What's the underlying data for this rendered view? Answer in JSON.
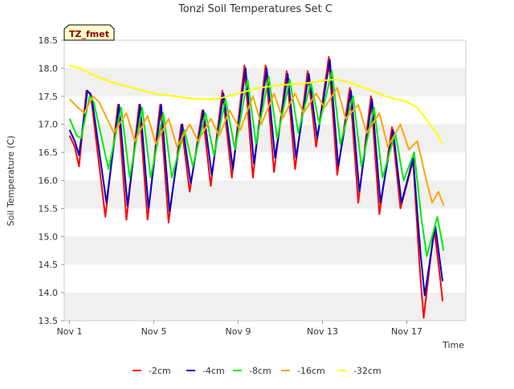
{
  "chart_data": {
    "type": "line",
    "title": "Tonzi Soil Temperatures Set C",
    "site_label": "TZ_fmet",
    "xlabel": "Time",
    "ylabel": "Soil Temperature (C)",
    "xlim": [
      -0.25,
      18.8
    ],
    "ylim": [
      13.5,
      18.5
    ],
    "x_ticks": [
      {
        "value": 0,
        "label": "Nov 1"
      },
      {
        "value": 4,
        "label": "Nov 5"
      },
      {
        "value": 8,
        "label": "Nov 9"
      },
      {
        "value": 12,
        "label": "Nov 13"
      },
      {
        "value": 16,
        "label": "Nov 17"
      }
    ],
    "y_ticks": [
      13.5,
      14.0,
      14.5,
      15.0,
      15.5,
      16.0,
      16.5,
      17.0,
      17.5,
      18.0,
      18.5
    ],
    "grid": "horizontal bands",
    "legend_position": "bottom",
    "series": [
      {
        "name": "-2cm",
        "color": "#ff0000",
        "points": [
          [
            0.0,
            16.8
          ],
          [
            0.25,
            16.6
          ],
          [
            0.45,
            16.25
          ],
          [
            0.8,
            17.6
          ],
          [
            1.0,
            17.55
          ],
          [
            1.7,
            15.35
          ],
          [
            2.3,
            17.35
          ],
          [
            2.7,
            15.3
          ],
          [
            3.3,
            17.35
          ],
          [
            3.7,
            15.3
          ],
          [
            4.3,
            17.35
          ],
          [
            4.7,
            15.25
          ],
          [
            5.3,
            17.0
          ],
          [
            5.7,
            15.8
          ],
          [
            6.3,
            17.25
          ],
          [
            6.7,
            15.9
          ],
          [
            7.25,
            17.6
          ],
          [
            7.7,
            16.05
          ],
          [
            8.3,
            18.05
          ],
          [
            8.7,
            16.05
          ],
          [
            9.3,
            18.05
          ],
          [
            9.7,
            16.15
          ],
          [
            10.3,
            17.95
          ],
          [
            10.7,
            16.2
          ],
          [
            11.3,
            17.95
          ],
          [
            11.7,
            16.6
          ],
          [
            12.3,
            18.2
          ],
          [
            12.7,
            16.1
          ],
          [
            13.3,
            17.65
          ],
          [
            13.7,
            15.6
          ],
          [
            14.3,
            17.5
          ],
          [
            14.7,
            15.4
          ],
          [
            15.3,
            16.95
          ],
          [
            15.7,
            15.5
          ],
          [
            16.3,
            16.35
          ],
          [
            16.6,
            14.5
          ],
          [
            16.8,
            13.55
          ],
          [
            17.3,
            15.15
          ],
          [
            17.6,
            14.2
          ],
          [
            17.7,
            13.85
          ]
        ]
      },
      {
        "name": "-4cm",
        "color": "#0000cc",
        "points": [
          [
            0.0,
            16.9
          ],
          [
            0.25,
            16.7
          ],
          [
            0.45,
            16.45
          ],
          [
            0.85,
            17.6
          ],
          [
            1.05,
            17.5
          ],
          [
            1.75,
            15.6
          ],
          [
            2.35,
            17.35
          ],
          [
            2.75,
            15.55
          ],
          [
            3.35,
            17.35
          ],
          [
            3.75,
            15.5
          ],
          [
            4.35,
            17.35
          ],
          [
            4.75,
            15.45
          ],
          [
            5.35,
            17.0
          ],
          [
            5.75,
            15.95
          ],
          [
            6.35,
            17.25
          ],
          [
            6.75,
            16.1
          ],
          [
            7.3,
            17.55
          ],
          [
            7.75,
            16.2
          ],
          [
            8.35,
            18.0
          ],
          [
            8.75,
            16.3
          ],
          [
            9.35,
            18.0
          ],
          [
            9.75,
            16.4
          ],
          [
            10.35,
            17.9
          ],
          [
            10.75,
            16.4
          ],
          [
            11.35,
            17.9
          ],
          [
            11.75,
            16.75
          ],
          [
            12.35,
            18.15
          ],
          [
            12.75,
            16.25
          ],
          [
            13.35,
            17.6
          ],
          [
            13.75,
            15.8
          ],
          [
            14.35,
            17.45
          ],
          [
            14.75,
            15.6
          ],
          [
            15.35,
            16.9
          ],
          [
            15.75,
            15.6
          ],
          [
            16.3,
            16.4
          ],
          [
            16.65,
            14.7
          ],
          [
            16.85,
            13.95
          ],
          [
            17.35,
            15.2
          ],
          [
            17.7,
            14.2
          ]
        ]
      },
      {
        "name": "-8cm",
        "color": "#00ee00",
        "points": [
          [
            0.0,
            17.1
          ],
          [
            0.35,
            16.8
          ],
          [
            0.55,
            16.75
          ],
          [
            0.95,
            17.5
          ],
          [
            1.15,
            17.4
          ],
          [
            1.85,
            16.2
          ],
          [
            2.45,
            17.3
          ],
          [
            2.85,
            16.05
          ],
          [
            3.45,
            17.3
          ],
          [
            3.85,
            16.05
          ],
          [
            4.45,
            17.2
          ],
          [
            4.85,
            16.05
          ],
          [
            5.45,
            16.9
          ],
          [
            5.85,
            16.25
          ],
          [
            6.45,
            17.2
          ],
          [
            6.85,
            16.45
          ],
          [
            7.4,
            17.45
          ],
          [
            7.85,
            16.55
          ],
          [
            8.45,
            17.8
          ],
          [
            8.85,
            16.65
          ],
          [
            9.45,
            17.85
          ],
          [
            9.85,
            16.75
          ],
          [
            10.45,
            17.8
          ],
          [
            10.85,
            16.85
          ],
          [
            11.45,
            17.75
          ],
          [
            11.85,
            17.0
          ],
          [
            12.45,
            17.95
          ],
          [
            12.85,
            16.65
          ],
          [
            13.45,
            17.5
          ],
          [
            13.85,
            16.25
          ],
          [
            14.45,
            17.3
          ],
          [
            14.85,
            16.05
          ],
          [
            15.45,
            16.85
          ],
          [
            15.85,
            16.0
          ],
          [
            16.35,
            16.5
          ],
          [
            16.7,
            15.3
          ],
          [
            16.95,
            14.65
          ],
          [
            17.45,
            15.35
          ],
          [
            17.75,
            14.75
          ]
        ]
      },
      {
        "name": "-16cm",
        "color": "#ffa500",
        "points": [
          [
            0.0,
            17.45
          ],
          [
            0.4,
            17.3
          ],
          [
            0.7,
            17.2
          ],
          [
            1.1,
            17.5
          ],
          [
            1.4,
            17.4
          ],
          [
            2.1,
            16.85
          ],
          [
            2.7,
            17.2
          ],
          [
            3.1,
            16.7
          ],
          [
            3.7,
            17.15
          ],
          [
            4.1,
            16.65
          ],
          [
            4.7,
            17.1
          ],
          [
            5.1,
            16.6
          ],
          [
            5.7,
            17.0
          ],
          [
            6.1,
            16.7
          ],
          [
            6.7,
            17.1
          ],
          [
            7.1,
            16.8
          ],
          [
            7.6,
            17.25
          ],
          [
            8.1,
            16.9
          ],
          [
            8.7,
            17.5
          ],
          [
            9.1,
            17.0
          ],
          [
            9.7,
            17.55
          ],
          [
            10.1,
            17.1
          ],
          [
            10.7,
            17.55
          ],
          [
            11.1,
            17.2
          ],
          [
            11.7,
            17.55
          ],
          [
            12.1,
            17.3
          ],
          [
            12.7,
            17.65
          ],
          [
            13.1,
            17.1
          ],
          [
            13.7,
            17.35
          ],
          [
            14.1,
            16.85
          ],
          [
            14.7,
            17.2
          ],
          [
            15.1,
            16.6
          ],
          [
            15.7,
            17.0
          ],
          [
            16.1,
            16.55
          ],
          [
            16.5,
            16.7
          ],
          [
            16.9,
            16.05
          ],
          [
            17.2,
            15.6
          ],
          [
            17.5,
            15.8
          ],
          [
            17.75,
            15.55
          ]
        ]
      },
      {
        "name": "-32cm",
        "color": "#ffff00",
        "points": [
          [
            0.0,
            18.05
          ],
          [
            0.5,
            18.0
          ],
          [
            1.0,
            17.9
          ],
          [
            2.0,
            17.75
          ],
          [
            3.0,
            17.65
          ],
          [
            4.0,
            17.55
          ],
          [
            5.0,
            17.5
          ],
          [
            6.0,
            17.45
          ],
          [
            7.0,
            17.45
          ],
          [
            8.0,
            17.55
          ],
          [
            9.0,
            17.65
          ],
          [
            10.0,
            17.7
          ],
          [
            11.0,
            17.72
          ],
          [
            12.0,
            17.78
          ],
          [
            12.6,
            17.8
          ],
          [
            13.0,
            17.78
          ],
          [
            14.0,
            17.65
          ],
          [
            15.0,
            17.5
          ],
          [
            16.0,
            17.4
          ],
          [
            16.5,
            17.3
          ],
          [
            17.0,
            17.05
          ],
          [
            17.4,
            16.85
          ],
          [
            17.7,
            16.65
          ]
        ]
      }
    ]
  }
}
